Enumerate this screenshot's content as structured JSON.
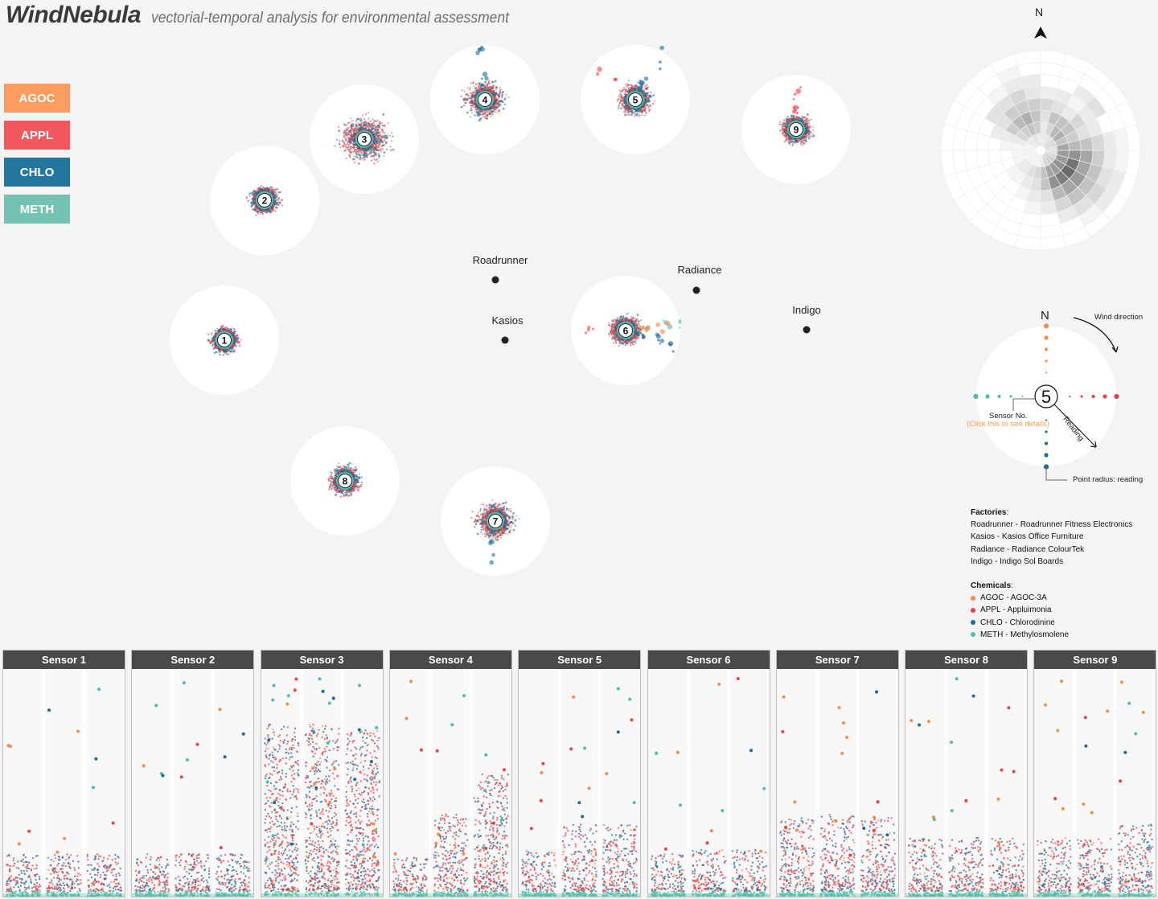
{
  "header": {
    "app_name": "WindNebula",
    "subtitle": "vectorial-temporal analysis for environmental assessment"
  },
  "chemical_buttons": [
    {
      "label": "AGOC",
      "color": "#fc9d5f"
    },
    {
      "label": "APPL",
      "color": "#f1595f"
    },
    {
      "label": "CHLO",
      "color": "#21779c"
    },
    {
      "label": "METH",
      "color": "#74c2b0"
    }
  ],
  "chemical_colors": {
    "AGOC": "#f98c4a",
    "APPL": "#ee3f45",
    "CHLO": "#1b6b96",
    "METH": "#4dbfa6"
  },
  "sensors": [
    {
      "id": "1",
      "spread": 0.12
    },
    {
      "id": "2",
      "spread": 0.16
    },
    {
      "id": "3",
      "spread": 0.55
    },
    {
      "id": "4",
      "spread": 0.35
    },
    {
      "id": "5",
      "spread": 0.25
    },
    {
      "id": "6",
      "spread": 0.2
    },
    {
      "id": "7",
      "spread": 0.35
    },
    {
      "id": "8",
      "spread": 0.2
    },
    {
      "id": "9",
      "spread": 0.18
    }
  ],
  "factories": [
    {
      "name": "Roadrunner"
    },
    {
      "name": "Kasios"
    },
    {
      "name": "Radiance"
    },
    {
      "name": "Indigo"
    }
  ],
  "wind_rose": {
    "north_label": "N",
    "sectors": 24,
    "rings": 8,
    "intensity": [
      [
        0.1,
        0.1,
        0.15,
        0.2,
        0.08,
        0,
        0,
        0
      ],
      [
        0.1,
        0.2,
        0.3,
        0.15,
        0.1,
        0,
        0,
        0
      ],
      [
        0.15,
        0.35,
        0.3,
        0.1,
        0.05,
        0.1,
        0,
        0
      ],
      [
        0.2,
        0.4,
        0.3,
        0.2,
        0.1,
        0.15,
        0,
        0
      ],
      [
        0.2,
        0.3,
        0.25,
        0.15,
        0.1,
        0,
        0,
        0
      ],
      [
        0.15,
        0.45,
        0.35,
        0.3,
        0.2,
        0.1,
        0.05,
        0
      ],
      [
        0.15,
        0.5,
        0.55,
        0.45,
        0.25,
        0.1,
        0.05,
        0
      ],
      [
        0.2,
        0.5,
        0.7,
        0.45,
        0.3,
        0.15,
        0.1,
        0
      ],
      [
        0.25,
        0.55,
        0.75,
        0.5,
        0.3,
        0.2,
        0.1,
        0
      ],
      [
        0.25,
        0.5,
        0.65,
        0.45,
        0.3,
        0.15,
        0.05,
        0
      ],
      [
        0.2,
        0.45,
        0.55,
        0.35,
        0.2,
        0.1,
        0,
        0
      ],
      [
        0.1,
        0.3,
        0.3,
        0.15,
        0.1,
        0,
        0,
        0
      ],
      [
        0.05,
        0.2,
        0.15,
        0.1,
        0.05,
        0,
        0,
        0
      ],
      [
        0.05,
        0.15,
        0.1,
        0.05,
        0,
        0,
        0,
        0
      ],
      [
        0.05,
        0.1,
        0.05,
        0,
        0,
        0,
        0,
        0
      ],
      [
        0.05,
        0.1,
        0.05,
        0,
        0,
        0,
        0,
        0
      ],
      [
        0.05,
        0.05,
        0,
        0,
        0,
        0,
        0,
        0
      ],
      [
        0.05,
        0.05,
        0,
        0,
        0,
        0,
        0,
        0
      ],
      [
        0.05,
        0.05,
        0.05,
        0,
        0,
        0,
        0,
        0
      ],
      [
        0.05,
        0.1,
        0.1,
        0.1,
        0,
        0,
        0,
        0
      ],
      [
        0.1,
        0.2,
        0.25,
        0.15,
        0.15,
        0,
        0,
        0
      ],
      [
        0.1,
        0.25,
        0.35,
        0.25,
        0.15,
        0.05,
        0,
        0
      ],
      [
        0.15,
        0.3,
        0.4,
        0.25,
        0.2,
        0.1,
        0.05,
        0
      ],
      [
        0.1,
        0.25,
        0.3,
        0.25,
        0.12,
        0.1,
        0,
        0
      ]
    ]
  },
  "guide": {
    "north_label": "N",
    "sensor_number": "5",
    "wind_direction_label": "Wind direction",
    "reading_label": "Reading",
    "sensor_no_label": "Sensor No.",
    "click_hint": "(Click this to see details)",
    "point_radius_label": "Point radius: reading"
  },
  "legend": {
    "factories_title": "Factories",
    "factories": [
      "Roadrunner - Roadrunner Fitness Electronics",
      "Kasios - Kasios Office Furniture",
      "Radiance - Radiance ColourTek",
      "Indigo - Indigo Sol Boards"
    ],
    "chemicals_title": "Chemicals",
    "chemicals": [
      {
        "label": "AGOC - AGOC-3A",
        "color": "#f98c4a"
      },
      {
        "label": "APPL - Appluimonia",
        "color": "#ee3f45"
      },
      {
        "label": "CHLO - Chlorodinine",
        "color": "#1b6b96"
      },
      {
        "label": "METH - Methylosmolene",
        "color": "#4dbfa6"
      }
    ]
  },
  "sensor_panels": [
    {
      "title": "Sensor 1",
      "activity": [
        0.1,
        0.1,
        0.1
      ]
    },
    {
      "title": "Sensor 2",
      "activity": [
        0.1,
        0.1,
        0.1
      ]
    },
    {
      "title": "Sensor 3",
      "activity": [
        0.75,
        0.75,
        0.72
      ]
    },
    {
      "title": "Sensor 4",
      "activity": [
        0.08,
        0.3,
        0.5
      ]
    },
    {
      "title": "Sensor 5",
      "activity": [
        0.12,
        0.25,
        0.25
      ]
    },
    {
      "title": "Sensor 6",
      "activity": [
        0.1,
        0.12,
        0.12
      ]
    },
    {
      "title": "Sensor 7",
      "activity": [
        0.28,
        0.3,
        0.28
      ]
    },
    {
      "title": "Sensor 8",
      "activity": [
        0.18,
        0.18,
        0.18
      ]
    },
    {
      "title": "Sensor 9",
      "activity": [
        0.18,
        0.18,
        0.25
      ]
    }
  ]
}
